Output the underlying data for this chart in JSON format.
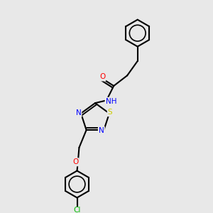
{
  "bg_color": "#e8e8e8",
  "bond_color": "#000000",
  "bond_width": 1.5,
  "atom_colors": {
    "O": "#ff0000",
    "N": "#0000ff",
    "S": "#cccc00",
    "Cl": "#00bb00",
    "C": "#000000"
  },
  "font_size": 7.5,
  "fig_size": [
    3.0,
    3.0
  ],
  "dpi": 100
}
